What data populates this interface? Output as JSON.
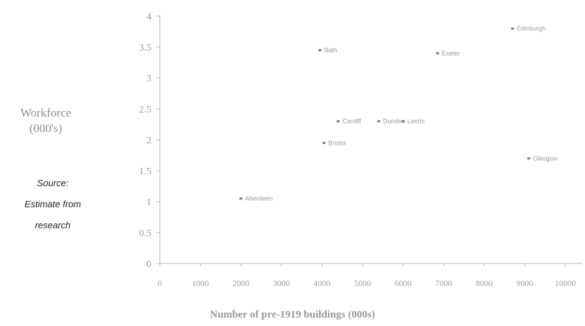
{
  "chart_data": {
    "type": "scatter",
    "title": "",
    "xlabel": "Number of pre-1919 buildings (000s)",
    "ylabel_lines": [
      "Workforce",
      "(000's)"
    ],
    "x_ticks": [
      "0",
      "1000",
      "2000",
      "3000",
      "4000",
      "5000",
      "6000",
      "7000",
      "8000",
      "9000",
      "10000"
    ],
    "y_ticks": [
      "0",
      "0.5",
      "1",
      "1.5",
      "2",
      "2.5",
      "3",
      "3.5",
      "4"
    ],
    "xlim": [
      0,
      10000
    ],
    "ylim": [
      0,
      4
    ],
    "grid": false,
    "points": [
      {
        "x": 2000,
        "y": 1.05,
        "label": "Aberdeen"
      },
      {
        "x": 3950,
        "y": 3.45,
        "label": "Bath"
      },
      {
        "x": 4050,
        "y": 1.95,
        "label": "Bristol"
      },
      {
        "x": 4400,
        "y": 2.3,
        "label": "Cardiff"
      },
      {
        "x": 5400,
        "y": 2.3,
        "label": "Dundee"
      },
      {
        "x": 6000,
        "y": 2.3,
        "label": "Leeds"
      },
      {
        "x": 6850,
        "y": 3.4,
        "label": "Exeter"
      },
      {
        "x": 8700,
        "y": 3.8,
        "label": "Edinburgh"
      },
      {
        "x": 9100,
        "y": 1.7,
        "label": "Glasgow"
      }
    ]
  },
  "source": {
    "lines": [
      "Source:",
      "Estimate from",
      "research"
    ]
  },
  "colors": {
    "axis": "#b4b4b4",
    "text": "#9a9a9a",
    "marker": "#7a7a7a"
  }
}
